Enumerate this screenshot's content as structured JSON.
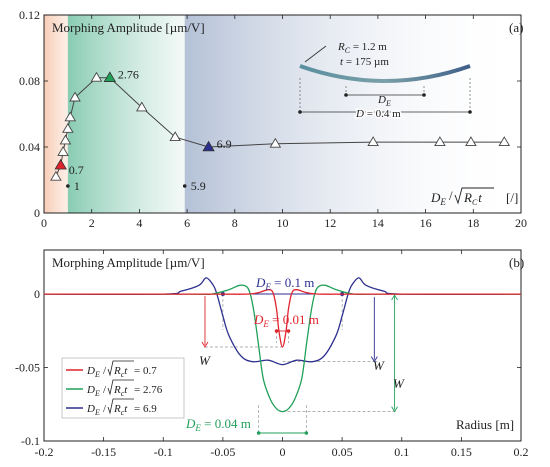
{
  "chart_data": [
    {
      "type": "line",
      "panel_label": "(a)",
      "title": "Morphing Amplitude [µm/V]",
      "xlabel": "DE/√(RC t) [/]",
      "xlabel_parts": {
        "lhs": "D",
        "lhs_sub": "E",
        "slash": "/",
        "rad": "R",
        "rad_sub": "C",
        "rad_tail": "t",
        "unit": "[/]"
      },
      "xlim": [
        0,
        20
      ],
      "ylim": [
        0,
        0.12
      ],
      "x_ticks": [
        "0",
        "2",
        "4",
        "6",
        "8",
        "10",
        "12",
        "14",
        "16",
        "18",
        "20"
      ],
      "y_ticks": [
        "0",
        "0.04",
        "0.08",
        "0.12"
      ],
      "series": [
        {
          "marker": "triangle",
          "x": [
            0.5,
            0.7,
            0.8,
            0.9,
            1.0,
            1.1,
            1.3,
            2.2,
            2.76,
            4.1,
            5.5,
            6.9,
            9.7,
            13.8,
            16.6,
            17.9,
            19.3
          ],
          "y": [
            0.022,
            0.029,
            0.037,
            0.044,
            0.051,
            0.058,
            0.07,
            0.082,
            0.082,
            0.064,
            0.046,
            0.04,
            0.042,
            0.043,
            0.043,
            0.043,
            0.043
          ]
        }
      ],
      "highlights": [
        {
          "x": 0.7,
          "y": 0.029,
          "label": "0.7",
          "color": "#e0242e"
        },
        {
          "x": 2.76,
          "y": 0.082,
          "label": "2.76",
          "color": "#21a05a"
        },
        {
          "x": 6.9,
          "y": 0.04,
          "label": "6.9",
          "color": "#2c2f8e"
        }
      ],
      "region_markers": [
        {
          "x": 1,
          "label": "1"
        },
        {
          "x": 5.9,
          "label": "5.9"
        }
      ],
      "inset": {
        "rc_label": "R",
        "rc_sub": "C",
        "rc_value": " = 1.2 m",
        "t_label": "t",
        "t_value": " = 175 µm",
        "de_label": "D",
        "de_sub": "E",
        "d_label": "D",
        "d_value": " = 0.4 m"
      }
    },
    {
      "type": "line",
      "panel_label": "(b)",
      "title": "Morphing Amplitude [µm/V]",
      "xlabel": "Radius [m]",
      "xlim": [
        -0.2,
        0.2
      ],
      "ylim": [
        -0.1,
        0.03
      ],
      "x_ticks": [
        "-0.2",
        "-0.15",
        "-0.1",
        "-0.05",
        "0",
        "0.05",
        "0.1",
        "0.15",
        "0.2"
      ],
      "y_ticks": [
        "-0.1",
        "-0.05",
        "0"
      ],
      "series": [
        {
          "name": "DE/√(RC t) = 0.7",
          "name_value": " = 0.7",
          "color": "#e0242e",
          "x": [
            -0.2,
            -0.06,
            -0.03,
            -0.02,
            -0.012,
            -0.008,
            -0.005,
            -0.003,
            0,
            0.003,
            0.005,
            0.008,
            0.012,
            0.02,
            0.03,
            0.06,
            0.2
          ],
          "y": [
            0,
            0,
            0,
            0.001,
            0.003,
            0.001,
            -0.01,
            -0.025,
            -0.036,
            -0.025,
            -0.01,
            0.001,
            0.003,
            0.001,
            0,
            0,
            0
          ]
        },
        {
          "name": "DE/√(RC t) = 2.76",
          "name_value": " = 2.76",
          "color": "#21a05a",
          "x": [
            -0.2,
            -0.08,
            -0.06,
            -0.045,
            -0.036,
            -0.03,
            -0.027,
            -0.024,
            -0.02,
            -0.016,
            -0.01,
            -0.005,
            0,
            0.005,
            0.01,
            0.016,
            0.02,
            0.024,
            0.027,
            0.03,
            0.036,
            0.045,
            0.06,
            0.08,
            0.2
          ],
          "y": [
            0,
            0,
            0,
            0.003,
            0.006,
            0.005,
            0,
            -0.012,
            -0.035,
            -0.058,
            -0.072,
            -0.078,
            -0.08,
            -0.078,
            -0.072,
            -0.058,
            -0.035,
            -0.012,
            0,
            0.005,
            0.006,
            0.003,
            0,
            0,
            0
          ]
        },
        {
          "name": "DE/√(RC t) = 6.9",
          "name_value": " = 6.9",
          "color": "#2c2f8e",
          "x": [
            -0.2,
            -0.1,
            -0.085,
            -0.07,
            -0.064,
            -0.058,
            -0.055,
            -0.05,
            -0.045,
            -0.035,
            -0.025,
            -0.012,
            0,
            0.012,
            0.025,
            0.035,
            0.045,
            0.05,
            0.055,
            0.058,
            0.064,
            0.07,
            0.085,
            0.1,
            0.2
          ],
          "y": [
            0,
            0,
            0.002,
            0.006,
            0.011,
            0.006,
            0,
            -0.015,
            -0.028,
            -0.042,
            -0.046,
            -0.045,
            -0.048,
            -0.045,
            -0.046,
            -0.042,
            -0.028,
            -0.015,
            0,
            0.006,
            0.011,
            0.006,
            0.002,
            0,
            0
          ]
        }
      ],
      "legend_placement": "bottom-left",
      "annotations": [
        {
          "label_main": "D",
          "label_sub": "E",
          "label_value": " = 0.1 m",
          "x_from": -0.05,
          "x_to": 0.05,
          "color": "#2c2f8e"
        },
        {
          "label_main": "D",
          "label_sub": "E",
          "label_value": " = 0.01 m",
          "x_from": -0.005,
          "x_to": 0.005,
          "color": "#e0242e"
        },
        {
          "label_main": "D",
          "label_sub": "E",
          "label_value": " = 0.04 m",
          "x_from": -0.02,
          "x_to": 0.02,
          "color": "#21a05a"
        },
        {
          "label": "W",
          "color": "#e0242e"
        },
        {
          "label": "W",
          "color": "#2c2f8e"
        },
        {
          "label": "W",
          "color": "#21a05a"
        }
      ]
    }
  ]
}
